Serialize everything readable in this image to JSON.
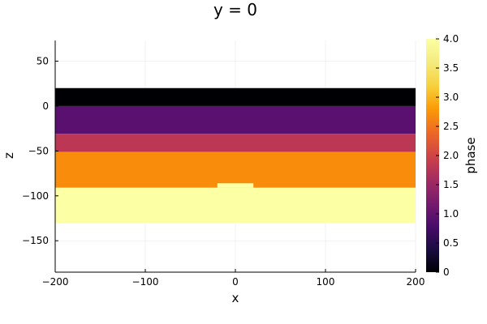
{
  "chart_data": {
    "type": "heatmap",
    "title": "y = 0",
    "xlabel": "x",
    "ylabel": "z",
    "xlim": [
      -200,
      200
    ],
    "ylim": [
      -185,
      73
    ],
    "x_ticks": [
      {
        "value": -200,
        "label": "−200"
      },
      {
        "value": -100,
        "label": "−100"
      },
      {
        "value": 0,
        "label": "0"
      },
      {
        "value": 100,
        "label": "100"
      },
      {
        "value": 200,
        "label": "200"
      }
    ],
    "y_ticks": [
      {
        "value": 50,
        "label": "50"
      },
      {
        "value": 0,
        "label": "0"
      },
      {
        "value": -50,
        "label": "−50"
      },
      {
        "value": -100,
        "label": "−100"
      },
      {
        "value": -150,
        "label": "−150"
      }
    ],
    "grid": true,
    "colorbar": {
      "label": "phase",
      "colormap": "inferno",
      "range": [
        0,
        4
      ],
      "ticks": [
        {
          "value": 0,
          "label": "0"
        },
        {
          "value": 0.5,
          "label": "0.5"
        },
        {
          "value": 1,
          "label": "1.0"
        },
        {
          "value": 1.5,
          "label": "1.5"
        },
        {
          "value": 2,
          "label": "2.0"
        },
        {
          "value": 2.5,
          "label": "2.5"
        },
        {
          "value": 3,
          "label": "3.0"
        },
        {
          "value": 3.5,
          "label": "3.5"
        },
        {
          "value": 4,
          "label": "4.0"
        }
      ]
    },
    "regions": [
      {
        "x": [
          -200,
          200
        ],
        "z": [
          0,
          20
        ],
        "phase": 0
      },
      {
        "x": [
          -200,
          200
        ],
        "z": [
          -31,
          0
        ],
        "phase": 1
      },
      {
        "x": [
          -200,
          200
        ],
        "z": [
          -51,
          -31
        ],
        "phase": 2
      },
      {
        "x": [
          -200,
          200
        ],
        "z": [
          -91,
          -51
        ],
        "phase": 3
      },
      {
        "x": [
          -200,
          200
        ],
        "z": [
          -130,
          -91
        ],
        "phase": 4
      },
      {
        "x": [
          -20,
          20
        ],
        "z": [
          -91,
          -86
        ],
        "phase": 4
      }
    ],
    "colors": {
      "phase_0": "#000004",
      "phase_1": "#5a106e",
      "phase_2": "#bb3754",
      "phase_3": "#f98c0a",
      "phase_4": "#fcffa4"
    }
  }
}
